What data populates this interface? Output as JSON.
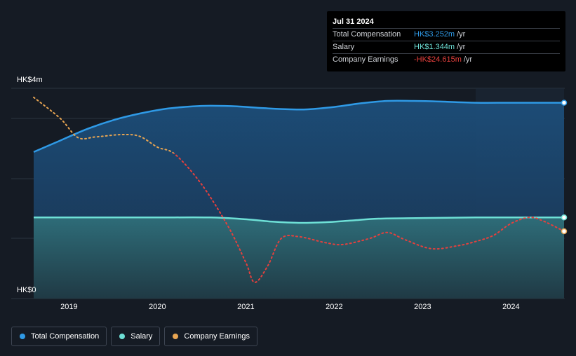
{
  "tooltip": {
    "date": "Jul 31 2024",
    "rows": [
      {
        "label": "Total Compensation",
        "value": "HK$3.252m",
        "unit": "/yr",
        "color": "#2f9ae6"
      },
      {
        "label": "Salary",
        "value": "HK$1.344m",
        "unit": "/yr",
        "color": "#6ee0d6"
      },
      {
        "label": "Company Earnings",
        "value": "-HK$24.615m",
        "unit": "/yr",
        "color": "#e6403d"
      }
    ]
  },
  "legend": [
    {
      "label": "Total Compensation",
      "color": "#2f9ae6"
    },
    {
      "label": "Salary",
      "color": "#6ee0d6"
    },
    {
      "label": "Company Earnings",
      "color": "#e8a552"
    }
  ],
  "chart_data": {
    "type": "line",
    "y_axis_labels": {
      "top": "HK$4m",
      "bottom": "HK$0"
    },
    "ylim": [
      0,
      3.5
    ],
    "xlim": [
      2018.6,
      2024.6
    ],
    "x_ticks": [
      2019,
      2020,
      2021,
      2022,
      2023,
      2024
    ],
    "highlight_start": 2023.6,
    "series": [
      {
        "name": "Total Compensation",
        "color": "#2f9ae6",
        "x": [
          2018.6,
          2018.9,
          2019.2,
          2019.5,
          2019.8,
          2020.1,
          2020.4,
          2020.6,
          2020.9,
          2021.2,
          2021.5,
          2021.7,
          2022.0,
          2022.3,
          2022.6,
          2022.9,
          2023.2,
          2023.6,
          2024.0,
          2024.6
        ],
        "y": [
          2.44,
          2.63,
          2.82,
          2.97,
          3.08,
          3.16,
          3.2,
          3.21,
          3.2,
          3.17,
          3.15,
          3.15,
          3.19,
          3.25,
          3.29,
          3.29,
          3.28,
          3.26,
          3.26,
          3.26
        ]
      },
      {
        "name": "Salary",
        "color": "#6ee0d6",
        "x": [
          2018.6,
          2019.0,
          2019.5,
          2020.0,
          2020.6,
          2021.0,
          2021.3,
          2021.6,
          2021.9,
          2022.2,
          2022.5,
          2023.0,
          2023.6,
          2024.0,
          2024.6
        ],
        "y": [
          1.35,
          1.35,
          1.35,
          1.35,
          1.35,
          1.32,
          1.28,
          1.26,
          1.27,
          1.3,
          1.33,
          1.34,
          1.35,
          1.35,
          1.35
        ]
      },
      {
        "name": "Company Earnings",
        "color": "#e8a552",
        "negative_color": "#e6403d",
        "threshold": 2.42,
        "x": [
          2018.6,
          2018.9,
          2019.1,
          2019.3,
          2019.6,
          2019.8,
          2020.0,
          2020.2,
          2020.5,
          2020.8,
          2021.0,
          2021.1,
          2021.25,
          2021.4,
          2021.6,
          2021.9,
          2022.1,
          2022.4,
          2022.6,
          2022.8,
          2023.1,
          2023.4,
          2023.6,
          2023.8,
          2024.0,
          2024.2,
          2024.35,
          2024.6
        ],
        "y": [
          3.35,
          3.0,
          2.68,
          2.69,
          2.73,
          2.7,
          2.52,
          2.4,
          1.9,
          1.2,
          0.6,
          0.27,
          0.55,
          1.0,
          1.03,
          0.93,
          0.9,
          1.0,
          1.1,
          0.98,
          0.83,
          0.88,
          0.95,
          1.05,
          1.25,
          1.35,
          1.3,
          1.12
        ]
      }
    ]
  }
}
